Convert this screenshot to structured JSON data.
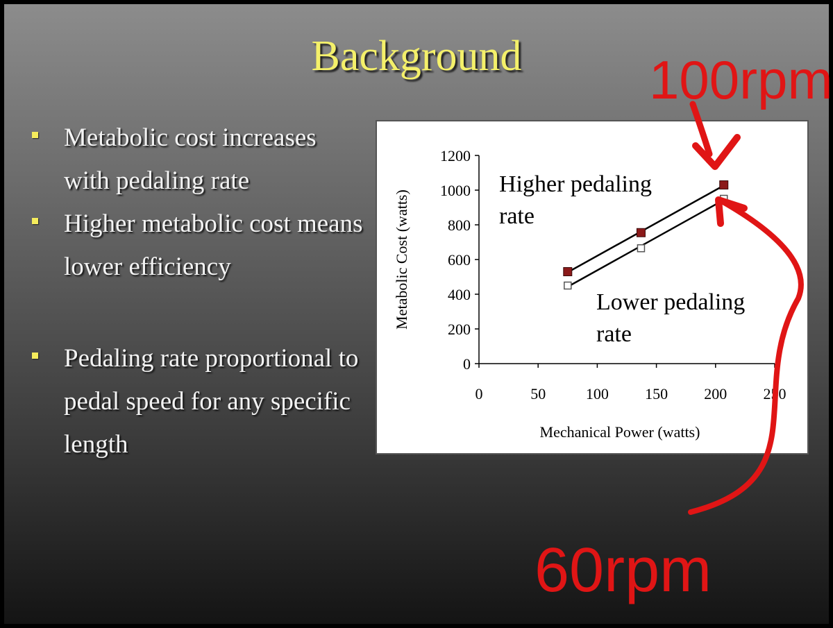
{
  "slide": {
    "title": "Background",
    "bullets": [
      "Metabolic cost increases with pedaling rate",
      "Higher metabolic cost means lower efficiency",
      "Pedaling rate proportional to pedal speed for any specific length"
    ]
  },
  "annotations": {
    "top_label": "100rpm",
    "bottom_label": "60rpm",
    "color": "#e01515"
  },
  "chart_data": {
    "type": "scatter",
    "xlabel": "Mechanical Power (watts)",
    "ylabel": "Metabolic Cost (watts)",
    "xlim": [
      0,
      250
    ],
    "ylim": [
      0,
      1200
    ],
    "x_ticks": [
      0,
      50,
      100,
      150,
      200,
      250
    ],
    "y_ticks": [
      0,
      200,
      400,
      600,
      800,
      1000,
      1200
    ],
    "grid": false,
    "series": [
      {
        "name": "Higher pedaling rate",
        "marker": "filled-square",
        "color": "#8b1a1a",
        "x": [
          75,
          137,
          207
        ],
        "y": [
          530,
          755,
          1030
        ],
        "trendline": true
      },
      {
        "name": "Lower pedaling rate",
        "marker": "open-square",
        "color": "#555555",
        "x": [
          75,
          137,
          207
        ],
        "y": [
          450,
          665,
          950
        ],
        "trendline": true
      }
    ]
  }
}
